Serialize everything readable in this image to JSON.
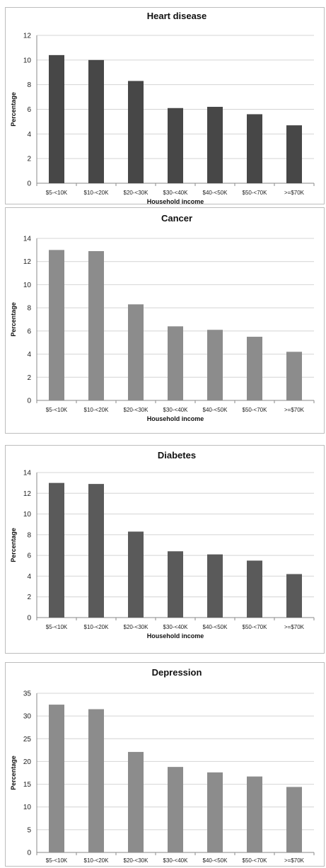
{
  "chart_data": [
    {
      "type": "bar",
      "title": "Heart disease",
      "xlabel": "Household income",
      "ylabel": "Percentage",
      "categories": [
        "$5-<10K",
        "$10-<20K",
        "$20-<30K",
        "$30-<40K",
        "$40-<50K",
        "$50-<70K",
        ">=$70K"
      ],
      "values": [
        10.4,
        10.0,
        8.3,
        6.1,
        6.2,
        5.6,
        4.7
      ],
      "ylim": [
        0,
        12
      ],
      "yticks": [
        0,
        2,
        4,
        6,
        8,
        10,
        12
      ],
      "grid": true,
      "bar_color": "#474747"
    },
    {
      "type": "bar",
      "title": "Cancer",
      "xlabel": "Household income",
      "ylabel": "Percentage",
      "categories": [
        "$5-<10K",
        "$10-<20K",
        "$20-<30K",
        "$30-<40K",
        "$40-<50K",
        "$50-<70K",
        ">=$70K"
      ],
      "values": [
        13.0,
        12.9,
        8.3,
        6.4,
        6.1,
        5.5,
        4.2
      ],
      "ylim": [
        0,
        14
      ],
      "yticks": [
        0,
        2,
        4,
        6,
        8,
        10,
        12,
        14
      ],
      "grid": true,
      "bar_color": "#8c8c8c"
    },
    {
      "type": "bar",
      "title": "Diabetes",
      "xlabel": "Household income",
      "ylabel": "Percentage",
      "categories": [
        "$5-<10K",
        "$10-<20K",
        "$20-<30K",
        "$30-<40K",
        "$40-<50K",
        "$50-<70K",
        ">=$70K"
      ],
      "values": [
        13.0,
        12.9,
        8.3,
        6.4,
        6.1,
        5.5,
        4.2
      ],
      "ylim": [
        0,
        14
      ],
      "yticks": [
        0,
        2,
        4,
        6,
        8,
        10,
        12,
        14
      ],
      "grid": true,
      "bar_color": "#5a5a5a"
    },
    {
      "type": "bar",
      "title": "Depression",
      "xlabel": "Household income",
      "ylabel": "Percentage",
      "categories": [
        "$5-<10K",
        "$10-<20K",
        "$20-<30K",
        "$30-<40K",
        "$40-<50K",
        "$50-<70K",
        ">=$70K"
      ],
      "values": [
        32.5,
        31.5,
        22.1,
        18.8,
        17.6,
        16.7,
        14.4
      ],
      "ylim": [
        0,
        35
      ],
      "yticks": [
        0,
        5,
        10,
        15,
        20,
        25,
        30,
        35
      ],
      "grid": true,
      "bar_color": "#8c8c8c"
    }
  ]
}
